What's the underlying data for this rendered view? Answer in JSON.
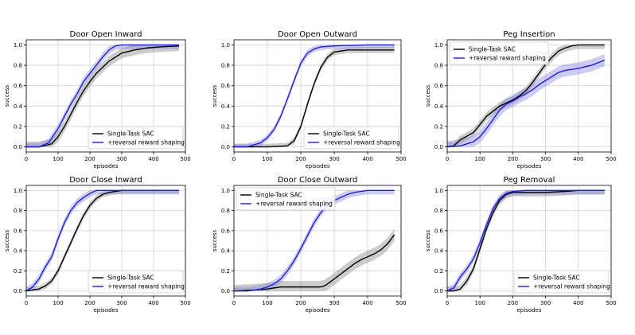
{
  "colors": {
    "sac": "#000000",
    "sac_band": "#808080",
    "reversal": "#1f1fd8",
    "reversal_band": "#7f7fe6",
    "grid": "#d3d3d3"
  },
  "chart_data": [
    {
      "type": "line",
      "title": "Door Open Inward",
      "xlabel": "episodes",
      "ylabel": "success",
      "xlim": [
        0,
        500
      ],
      "ylim": [
        -0.05,
        1.05
      ],
      "xticks": [
        "0",
        "100",
        "200",
        "300",
        "400",
        "500"
      ],
      "yticks": [
        "0.0",
        "0.2",
        "0.4",
        "0.6",
        "0.8",
        "1.0"
      ],
      "grid": true,
      "legend_position": "bottom-right",
      "series": [
        {
          "name": "Single-Task SAC",
          "color": "#000000",
          "x": [
            0,
            40,
            80,
            100,
            120,
            140,
            160,
            180,
            200,
            220,
            240,
            260,
            280,
            300,
            340,
            380,
            420,
            480
          ],
          "y": [
            0.0,
            0.0,
            0.03,
            0.1,
            0.2,
            0.32,
            0.44,
            0.55,
            0.64,
            0.72,
            0.78,
            0.84,
            0.88,
            0.92,
            0.95,
            0.97,
            0.98,
            0.99
          ],
          "band": 0.05
        },
        {
          "name": "+reversal reward shaping",
          "color": "#1f1fd8",
          "x": [
            0,
            40,
            70,
            100,
            120,
            140,
            160,
            180,
            200,
            220,
            240,
            260,
            280,
            300,
            340,
            400,
            480
          ],
          "y": [
            0.0,
            0.0,
            0.04,
            0.18,
            0.3,
            0.42,
            0.52,
            0.64,
            0.72,
            0.8,
            0.88,
            0.95,
            0.99,
            1.0,
            1.0,
            1.0,
            1.0
          ],
          "band": 0.04
        }
      ]
    },
    {
      "type": "line",
      "title": "Door Open Outward",
      "xlabel": "episodes",
      "ylabel": "success",
      "xlim": [
        0,
        500
      ],
      "ylim": [
        -0.05,
        1.05
      ],
      "xticks": [
        "0",
        "100",
        "200",
        "300",
        "400",
        "500"
      ],
      "yticks": [
        "0.0",
        "0.2",
        "0.4",
        "0.6",
        "0.8",
        "1.0"
      ],
      "grid": true,
      "legend_position": "bottom-right",
      "series": [
        {
          "name": "Single-Task SAC",
          "color": "#000000",
          "x": [
            0,
            100,
            160,
            180,
            200,
            220,
            240,
            260,
            280,
            300,
            340,
            400,
            480
          ],
          "y": [
            0.0,
            0.0,
            0.01,
            0.06,
            0.2,
            0.42,
            0.62,
            0.78,
            0.88,
            0.93,
            0.95,
            0.95,
            0.95
          ],
          "band": 0.03
        },
        {
          "name": "+reversal reward shaping",
          "color": "#1f1fd8",
          "x": [
            0,
            40,
            80,
            100,
            120,
            140,
            160,
            180,
            200,
            220,
            240,
            260,
            300,
            400,
            480
          ],
          "y": [
            0.0,
            0.0,
            0.04,
            0.09,
            0.17,
            0.3,
            0.47,
            0.65,
            0.82,
            0.92,
            0.96,
            0.98,
            0.99,
            1.0,
            1.0
          ],
          "band": 0.03
        }
      ]
    },
    {
      "type": "line",
      "title": "Peg Insertion",
      "xlabel": "episodes",
      "ylabel": "success",
      "xlim": [
        0,
        500
      ],
      "ylim": [
        -0.05,
        1.05
      ],
      "xticks": [
        "0",
        "100",
        "200",
        "300",
        "400",
        "500"
      ],
      "yticks": [
        "0.0",
        "0.2",
        "0.4",
        "0.6",
        "0.8",
        "1.0"
      ],
      "grid": true,
      "legend_position": "top-left",
      "series": [
        {
          "name": "Single-Task SAC",
          "color": "#000000",
          "x": [
            0,
            20,
            40,
            80,
            100,
            120,
            140,
            160,
            180,
            200,
            220,
            240,
            260,
            280,
            300,
            320,
            340,
            360,
            380,
            400,
            440,
            480
          ],
          "y": [
            0.0,
            0.01,
            0.07,
            0.14,
            0.22,
            0.3,
            0.35,
            0.4,
            0.43,
            0.46,
            0.5,
            0.55,
            0.63,
            0.72,
            0.81,
            0.88,
            0.94,
            0.97,
            0.99,
            1.0,
            1.0,
            1.0
          ],
          "band": 0.04
        },
        {
          "name": "+reversal reward shaping",
          "color": "#1f1fd8",
          "x": [
            0,
            40,
            80,
            100,
            120,
            140,
            160,
            180,
            200,
            220,
            240,
            260,
            280,
            300,
            320,
            340,
            360,
            400,
            440,
            480
          ],
          "y": [
            0.0,
            0.01,
            0.05,
            0.1,
            0.18,
            0.27,
            0.36,
            0.42,
            0.45,
            0.49,
            0.52,
            0.56,
            0.61,
            0.65,
            0.69,
            0.73,
            0.75,
            0.77,
            0.8,
            0.85
          ],
          "band": 0.06
        }
      ]
    },
    {
      "type": "line",
      "title": "Door Close Inward",
      "xlabel": "episodes",
      "ylabel": "success",
      "xlim": [
        0,
        500
      ],
      "ylim": [
        -0.05,
        1.05
      ],
      "xticks": [
        "0",
        "100",
        "200",
        "300",
        "400",
        "500"
      ],
      "yticks": [
        "0.0",
        "0.2",
        "0.4",
        "0.6",
        "0.8",
        "1.0"
      ],
      "grid": true,
      "legend_position": "bottom-right",
      "series": [
        {
          "name": "Single-Task SAC",
          "color": "#000000",
          "x": [
            0,
            20,
            40,
            60,
            80,
            100,
            120,
            140,
            160,
            180,
            200,
            220,
            240,
            260,
            280,
            300,
            340,
            400,
            480
          ],
          "y": [
            0.0,
            0.01,
            0.02,
            0.05,
            0.1,
            0.2,
            0.34,
            0.48,
            0.62,
            0.75,
            0.85,
            0.92,
            0.96,
            0.98,
            0.99,
            1.0,
            1.0,
            1.0,
            1.0
          ],
          "band": 0.03
        },
        {
          "name": "+reversal reward shaping",
          "color": "#1f1fd8",
          "x": [
            0,
            20,
            40,
            60,
            80,
            100,
            120,
            140,
            160,
            180,
            200,
            220,
            240,
            280,
            340,
            480
          ],
          "y": [
            0.0,
            0.04,
            0.12,
            0.24,
            0.34,
            0.52,
            0.68,
            0.8,
            0.88,
            0.93,
            0.97,
            1.0,
            1.0,
            1.0,
            1.0,
            1.0
          ],
          "band": 0.04
        }
      ]
    },
    {
      "type": "line",
      "title": "Door Close Outward",
      "xlabel": "episodes",
      "ylabel": "success",
      "xlim": [
        0,
        500
      ],
      "ylim": [
        -0.05,
        1.05
      ],
      "xticks": [
        "0",
        "100",
        "200",
        "300",
        "400",
        "500"
      ],
      "yticks": [
        "0.0",
        "0.2",
        "0.4",
        "0.6",
        "0.8",
        "1.0"
      ],
      "grid": true,
      "legend_position": "top-left",
      "series": [
        {
          "name": "Single-Task SAC",
          "color": "#000000",
          "x": [
            0,
            60,
            100,
            140,
            180,
            220,
            260,
            270,
            280,
            300,
            320,
            340,
            360,
            380,
            400,
            420,
            440,
            460,
            480
          ],
          "y": [
            0.0,
            0.01,
            0.02,
            0.04,
            0.04,
            0.04,
            0.04,
            0.05,
            0.07,
            0.12,
            0.17,
            0.22,
            0.27,
            0.31,
            0.34,
            0.37,
            0.41,
            0.47,
            0.56
          ],
          "band": 0.06
        },
        {
          "name": "+reversal reward shaping",
          "color": "#1f1fd8",
          "x": [
            0,
            40,
            80,
            100,
            120,
            140,
            160,
            180,
            200,
            220,
            240,
            260,
            280,
            300,
            320,
            340,
            360,
            380,
            400,
            440,
            480
          ],
          "y": [
            0.0,
            0.0,
            0.02,
            0.04,
            0.07,
            0.12,
            0.2,
            0.3,
            0.42,
            0.55,
            0.68,
            0.78,
            0.86,
            0.9,
            0.93,
            0.96,
            0.98,
            0.99,
            1.0,
            1.0,
            1.0
          ],
          "band": 0.04
        }
      ]
    },
    {
      "type": "line",
      "title": "Peg Removal",
      "xlabel": "episodes",
      "ylabel": "success",
      "xlim": [
        0,
        500
      ],
      "ylim": [
        -0.05,
        1.05
      ],
      "xticks": [
        "0",
        "100",
        "200",
        "300",
        "400",
        "500"
      ],
      "yticks": [
        "0.0",
        "0.2",
        "0.4",
        "0.6",
        "0.8",
        "1.0"
      ],
      "grid": true,
      "legend_position": "bottom-right",
      "series": [
        {
          "name": "Single-Task SAC",
          "color": "#000000",
          "x": [
            0,
            20,
            40,
            60,
            80,
            100,
            120,
            140,
            160,
            180,
            200,
            240,
            300,
            360,
            400,
            480
          ],
          "y": [
            0.0,
            0.0,
            0.02,
            0.1,
            0.22,
            0.42,
            0.62,
            0.78,
            0.9,
            0.96,
            0.98,
            0.98,
            0.98,
            0.99,
            1.0,
            1.0
          ],
          "band": 0.04
        },
        {
          "name": "+reversal reward shaping",
          "color": "#1f1fd8",
          "x": [
            0,
            20,
            40,
            60,
            80,
            100,
            120,
            140,
            160,
            180,
            200,
            240,
            300,
            360,
            400,
            480
          ],
          "y": [
            0.0,
            0.03,
            0.14,
            0.22,
            0.32,
            0.48,
            0.66,
            0.82,
            0.92,
            0.97,
            0.99,
            1.0,
            1.0,
            1.0,
            1.0,
            1.0
          ],
          "band": 0.04
        }
      ]
    }
  ]
}
